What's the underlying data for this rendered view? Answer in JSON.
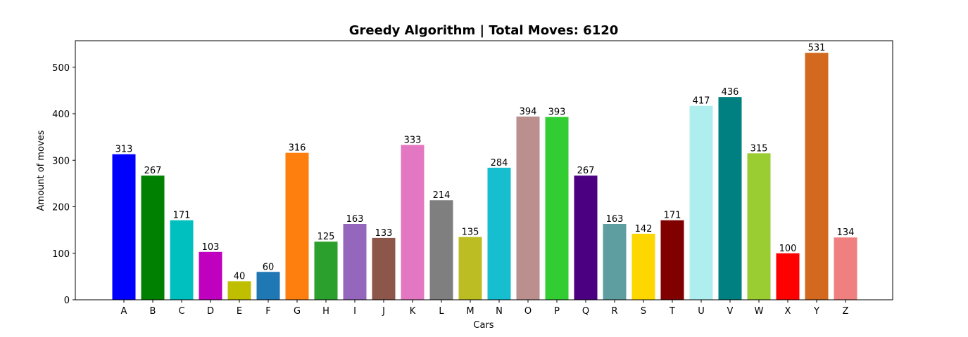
{
  "chart_data": {
    "type": "bar",
    "title": "Greedy Algorithm | Total Moves: 6120",
    "xlabel": "Cars",
    "ylabel": "Amount of moves",
    "ylim": [
      0,
      557
    ],
    "yticks": [
      0,
      100,
      200,
      300,
      400,
      500
    ],
    "grid": false,
    "categories": [
      "A",
      "B",
      "C",
      "D",
      "E",
      "F",
      "G",
      "H",
      "I",
      "J",
      "K",
      "L",
      "M",
      "N",
      "O",
      "P",
      "Q",
      "R",
      "S",
      "T",
      "U",
      "V",
      "W",
      "X",
      "Y",
      "Z"
    ],
    "values": [
      313,
      267,
      171,
      103,
      40,
      60,
      316,
      125,
      163,
      133,
      333,
      214,
      135,
      284,
      394,
      393,
      267,
      163,
      142,
      171,
      417,
      436,
      315,
      100,
      531,
      134
    ],
    "colors": [
      "#0000ff",
      "#008000",
      "#00bfbf",
      "#bf00bf",
      "#bfbf00",
      "#1f77b4",
      "#ff7f0e",
      "#2ca02c",
      "#9467bd",
      "#8c564b",
      "#e377c2",
      "#7f7f7f",
      "#bcbd22",
      "#17becf",
      "#bc8f8f",
      "#32cd32",
      "#4b0082",
      "#5f9ea0",
      "#ffd700",
      "#800000",
      "#afeeee",
      "#008080",
      "#9acd32",
      "#ff0000",
      "#d2691e",
      "#f08080"
    ]
  }
}
